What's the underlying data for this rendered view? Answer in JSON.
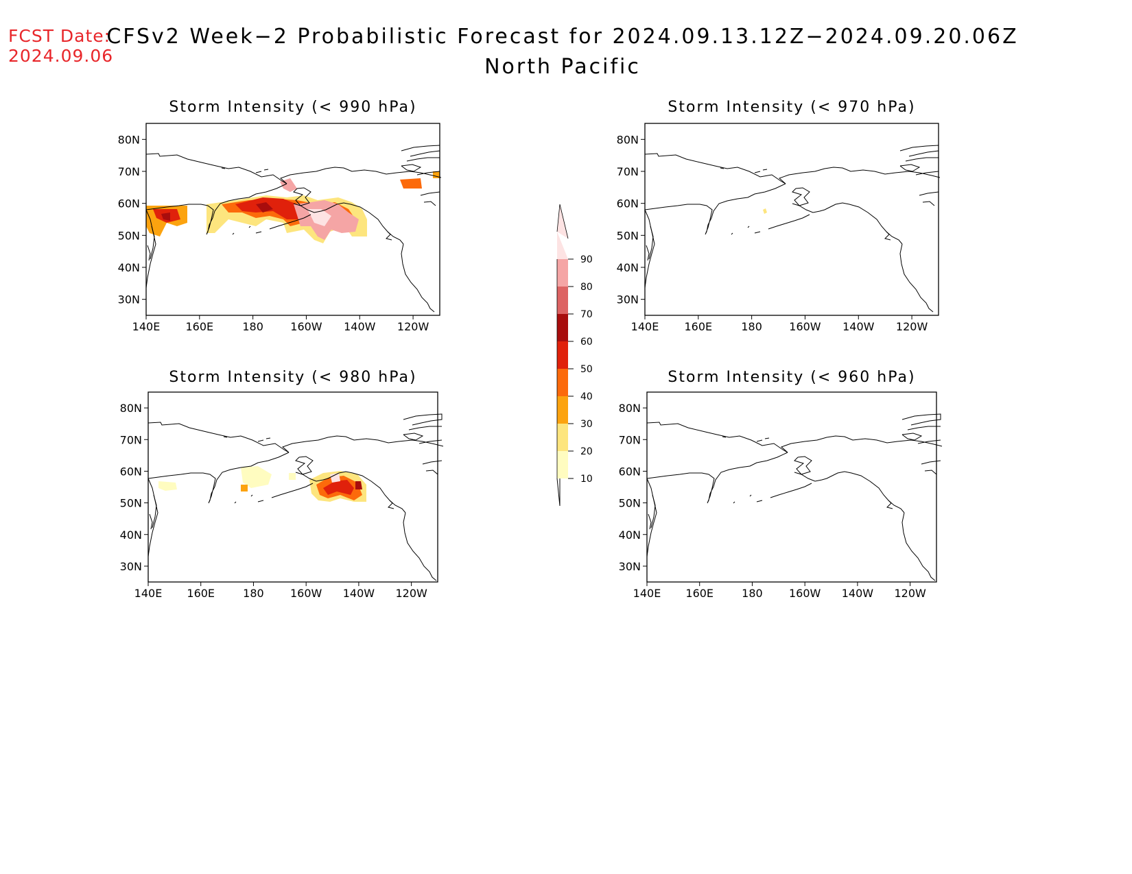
{
  "forecast_date": {
    "label": "FCST Date:",
    "value": "2024.09.06"
  },
  "title": "CFSv2 Week−2 Probabilistic Forecast for 2024.09.13.12Z−2024.09.20.06Z",
  "subtitle": "North Pacific",
  "panels": [
    {
      "id": "p990",
      "title": "Storm Intensity (< 990 hPa)"
    },
    {
      "id": "p970",
      "title": "Storm Intensity (< 970 hPa)"
    },
    {
      "id": "p980",
      "title": "Storm Intensity (< 980 hPa)"
    },
    {
      "id": "p960",
      "title": "Storm Intensity (< 960 hPa)"
    }
  ],
  "lon_ticks": [
    "140E",
    "160E",
    "180",
    "160W",
    "140W",
    "120W"
  ],
  "lat_ticks": [
    "80N",
    "70N",
    "60N",
    "50N",
    "40N",
    "30N"
  ],
  "colorbar": {
    "labels": [
      "10",
      "20",
      "30",
      "40",
      "50",
      "60",
      "70",
      "80",
      "90"
    ],
    "colors": [
      "#fffcc0",
      "#fde57e",
      "#fca30f",
      "#fc6a0b",
      "#e0210b",
      "#a80d0d",
      "#dd6363",
      "#f5a5a5",
      "#fde3e3"
    ]
  }
}
